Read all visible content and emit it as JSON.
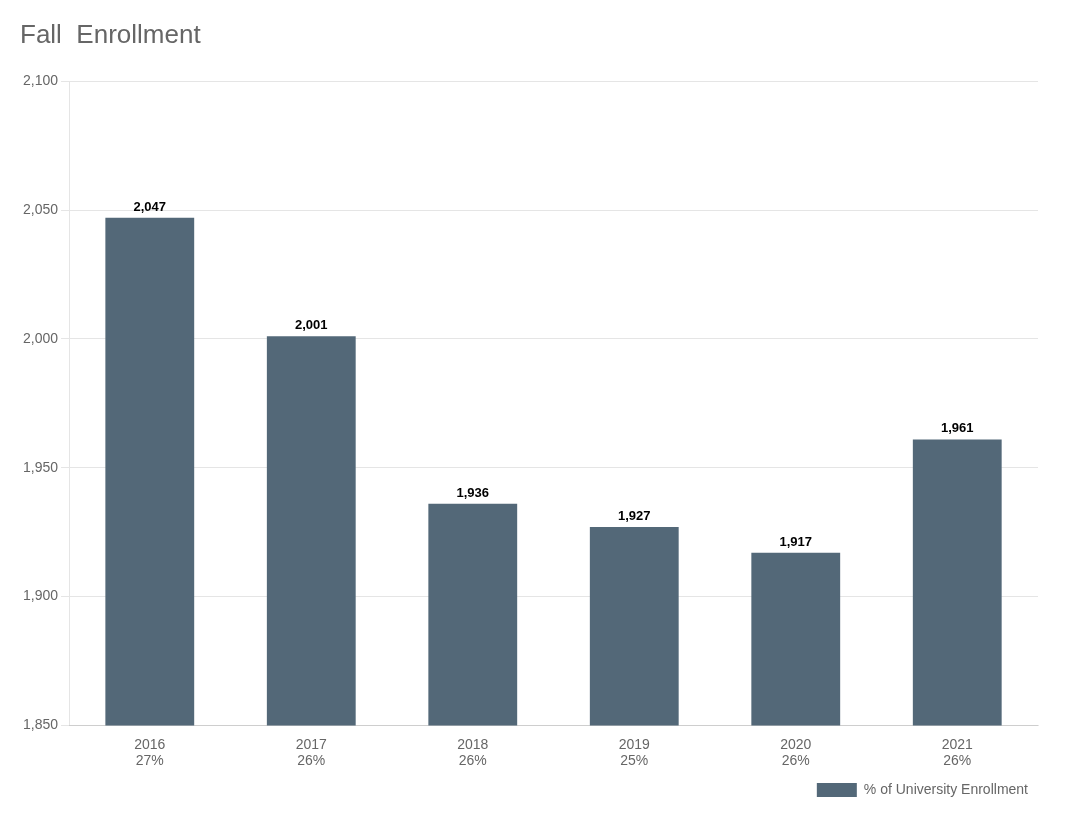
{
  "chart_data": {
    "type": "bar",
    "title": "Fall  Enrollment",
    "categories": [
      "2016",
      "2017",
      "2018",
      "2019",
      "2020",
      "2021"
    ],
    "series": [
      {
        "name": "% of University Enrollment",
        "color": "#536878",
        "values": [
          2047,
          2001,
          1936,
          1927,
          1917,
          1961
        ],
        "value_labels": [
          "2,047",
          "2,001",
          "1,936",
          "1,927",
          "1,917",
          "1,961"
        ]
      }
    ],
    "annotations": [
      {
        "x": "2016",
        "text": "27%"
      },
      {
        "x": "2017",
        "text": "26%"
      },
      {
        "x": "2018",
        "text": "26%"
      },
      {
        "x": "2019",
        "text": "25%"
      },
      {
        "x": "2020",
        "text": "26%"
      },
      {
        "x": "2021",
        "text": "26%"
      }
    ],
    "ylim": [
      1850,
      2100
    ],
    "yticks": [
      {
        "value": 1850,
        "label": "1,850"
      },
      {
        "value": 1900,
        "label": "1,900"
      },
      {
        "value": 1950,
        "label": "1,950"
      },
      {
        "value": 2000,
        "label": "2,000"
      },
      {
        "value": 2050,
        "label": "2,050"
      },
      {
        "value": 2100,
        "label": "2,100"
      }
    ],
    "grid": true,
    "legend": "bottom",
    "data_labels": true
  }
}
